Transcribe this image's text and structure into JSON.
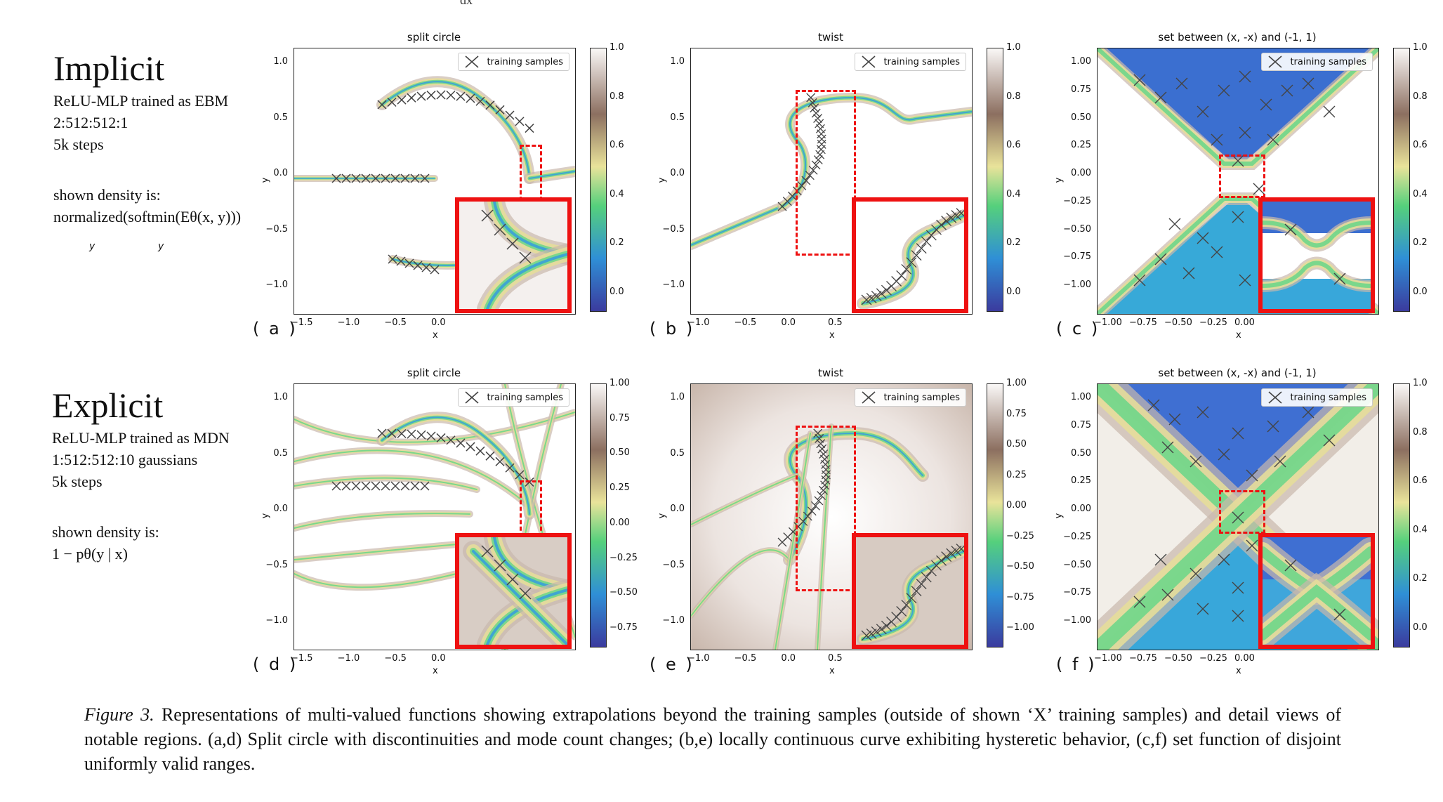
{
  "top_fragment": "dx",
  "rows": [
    {
      "title": "Implicit",
      "lines": [
        "ReLU-MLP trained as EBM",
        "2:512:512:1",
        "5k steps",
        "",
        "shown density is:"
      ],
      "formula": "normalized(softmin(Eθ(x, y)))",
      "formula_subs": [
        "y",
        "y"
      ]
    },
    {
      "title": "Explicit",
      "lines": [
        "ReLU-MLP trained as MDN",
        "1:512:512:10 gaussians",
        "5k steps",
        "",
        "shown density is:"
      ],
      "formula": "1 − pθ(y | x)",
      "formula_subs": []
    }
  ],
  "panels": [
    {
      "id": "a",
      "label": "( a )",
      "title": "split circle",
      "legend": "training samples",
      "xticks": [
        "−1.5",
        "−1.0",
        "−0.5",
        "0.0"
      ],
      "yticks": [
        "1.0",
        "0.5",
        "0.0",
        "−0.5",
        "−1.0"
      ],
      "xlabel": "x",
      "ylabel": "y",
      "cbar_ticks": [
        "1.0",
        "0.8",
        "0.6",
        "0.4",
        "0.2",
        "0.0"
      ],
      "cbar_type": "implicit"
    },
    {
      "id": "b",
      "label": "( b )",
      "title": "twist",
      "legend": "training samples",
      "xticks": [
        "−1.0",
        "−0.5",
        "0.0",
        "0.5"
      ],
      "yticks": [
        "1.0",
        "0.5",
        "0.0",
        "−0.5",
        "−1.0"
      ],
      "xlabel": "x",
      "ylabel": "y",
      "cbar_ticks": [
        "1.0",
        "0.8",
        "0.6",
        "0.4",
        "0.2",
        "0.0"
      ],
      "cbar_type": "implicit"
    },
    {
      "id": "c",
      "label": "( c )",
      "title": "set between (x, -x) and (-1, 1)",
      "legend": "training samples",
      "xticks": [
        "−1.00",
        "−0.75",
        "−0.50",
        "−0.25",
        "0.00"
      ],
      "yticks": [
        "1.00",
        "0.75",
        "0.50",
        "0.25",
        "0.00",
        "−0.25",
        "−0.50",
        "−0.75",
        "−1.00"
      ],
      "xlabel": "x",
      "ylabel": "y",
      "cbar_ticks": [
        "1.0",
        "0.8",
        "0.6",
        "0.4",
        "0.2",
        "0.0"
      ],
      "cbar_type": "implicit"
    },
    {
      "id": "d",
      "label": "( d )",
      "title": "split circle",
      "legend": "training samples",
      "xticks": [
        "−1.5",
        "−1.0",
        "−0.5",
        "0.0"
      ],
      "yticks": [
        "1.0",
        "0.5",
        "0.0",
        "−0.5",
        "−1.0"
      ],
      "xlabel": "x",
      "ylabel": "y",
      "cbar_ticks": [
        "1.00",
        "0.75",
        "0.50",
        "0.25",
        "0.00",
        "−0.25",
        "−0.50",
        "−0.75"
      ],
      "cbar_type": "explicit"
    },
    {
      "id": "e",
      "label": "( e )",
      "title": "twist",
      "legend": "training samples",
      "xticks": [
        "−1.0",
        "−0.5",
        "0.0",
        "0.5"
      ],
      "yticks": [
        "1.0",
        "0.5",
        "0.0",
        "−0.5",
        "−1.0"
      ],
      "xlabel": "x",
      "ylabel": "y",
      "cbar_ticks": [
        "1.00",
        "0.75",
        "0.50",
        "0.25",
        "0.00",
        "−0.25",
        "−0.50",
        "−0.75",
        "−1.00"
      ],
      "cbar_type": "explicit"
    },
    {
      "id": "f",
      "label": "( f )",
      "title": "set between (x, -x) and (-1, 1)",
      "legend": "training samples",
      "xticks": [
        "−1.00",
        "−0.75",
        "−0.50",
        "−0.25",
        "0.00"
      ],
      "yticks": [
        "1.00",
        "0.75",
        "0.50",
        "0.25",
        "0.00",
        "−0.25",
        "−0.50",
        "−0.75",
        "−1.00"
      ],
      "xlabel": "x",
      "ylabel": "y",
      "cbar_ticks": [
        "1.0",
        "0.8",
        "0.6",
        "0.4",
        "0.2",
        "0.0"
      ],
      "cbar_type": "implicit"
    }
  ],
  "caption": {
    "prefix": "Figure 3.",
    "text": " Representations of multi-valued functions showing extrapolations beyond the training samples (outside of shown ‘X’ training samples) and detail views of notable regions.  (a,d) Split circle with discontinuities and mode count changes; (b,e) locally continuous curve exhibiting hysteretic behavior, (c,f) set function of disjoint uniformly valid ranges."
  },
  "colors": {
    "inset_border": "#ee1111",
    "low": "#3a3aa8",
    "mid_green": "#4fd07a",
    "yellow": "#e8e28a",
    "brown": "#8a6e5e",
    "marker": "#444444"
  }
}
